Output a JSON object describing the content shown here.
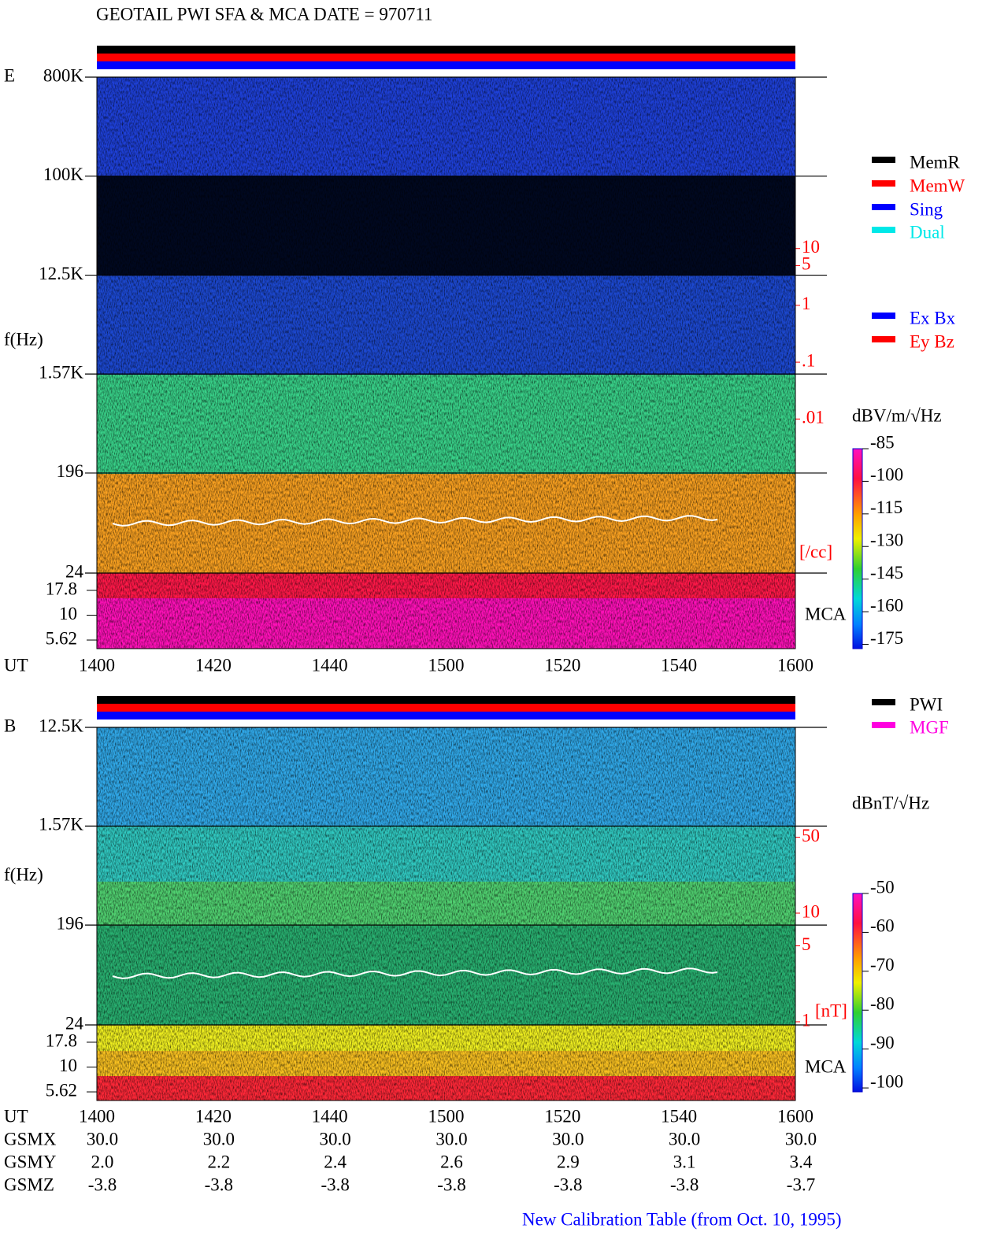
{
  "title": "GEOTAIL  PWI SFA & MCA   DATE = 970711",
  "chart_data": [
    {
      "type": "spectrogram",
      "panel": "E",
      "ylabel": "f(Hz)",
      "xlabel": "UT",
      "x": [
        "1400",
        "1420",
        "1440",
        "1500",
        "1520",
        "1540",
        "1600"
      ],
      "log_y": true,
      "ylim": [
        24,
        800000
      ],
      "yticks": [
        {
          "value": 800000,
          "label": "800K"
        },
        {
          "value": 100000,
          "label": "100K"
        },
        {
          "value": 12500,
          "label": "12.5K"
        },
        {
          "value": 1570,
          "label": "1.57K"
        },
        196,
        24
      ],
      "mca_label": "MCA",
      "mca_ylim": [
        4.6,
        26.6
      ],
      "mca_yticks": [
        17.8,
        10,
        5.62
      ],
      "y2label": "[/cc]",
      "y2lim": [
        0.005,
        20
      ],
      "y2ticks": [
        10,
        5,
        1,
        {
          "value": 0.1,
          "label": ".1"
        },
        {
          "value": 0.01,
          "label": ".01"
        }
      ],
      "colorbar": {
        "label": "dBV/m/√Hz",
        "lim": [
          -177,
          -85
        ],
        "ticks": [
          -85,
          -100,
          -115,
          -130,
          -145,
          -160,
          -175
        ]
      },
      "legend": [
        {
          "name": "MemR",
          "color": "#000000"
        },
        {
          "name": "MemW",
          "color": "#ff0000"
        },
        {
          "name": "Sing",
          "color": "#0000ff"
        },
        {
          "name": "Dual",
          "color": "#00e8e8"
        }
      ],
      "legend2": [
        {
          "name": "Ex Bx",
          "color": "#0000ff"
        },
        {
          "name": "Ey Bz",
          "color": "#ff0000"
        }
      ]
    },
    {
      "type": "spectrogram",
      "panel": "B",
      "ylabel": "f(Hz)",
      "xlabel": "UT",
      "x": [
        "1400",
        "1420",
        "1440",
        "1500",
        "1520",
        "1540",
        "1600"
      ],
      "log_y": true,
      "ylim": [
        24,
        12500
      ],
      "yticks": [
        {
          "value": 12500,
          "label": "12.5K"
        },
        {
          "value": 1570,
          "label": "1.57K"
        },
        196,
        24
      ],
      "mca_label": "MCA",
      "mca_ylim": [
        4.6,
        26.6
      ],
      "mca_yticks": [
        17.8,
        10,
        5.62
      ],
      "y2label": "[nT]",
      "y2lim": [
        0.935,
        62.7
      ],
      "y2ticks": [
        50,
        10,
        5,
        1
      ],
      "colorbar": {
        "label": "dBnT/√Hz",
        "lim": [
          -101,
          -50
        ],
        "ticks": [
          -50,
          -60,
          -70,
          -80,
          -90,
          -100
        ]
      },
      "legend": [
        {
          "name": "PWI",
          "color": "#000000"
        },
        {
          "name": "MGF",
          "color": "#ff00e0"
        }
      ]
    }
  ],
  "orbit": [
    {
      "label": "GSMX",
      "values": [
        "30.0",
        "30.0",
        "30.0",
        "30.0",
        "30.0",
        "30.0",
        "30.0"
      ]
    },
    {
      "label": "GSMY",
      "values": [
        "2.0",
        "2.2",
        "2.4",
        "2.6",
        "2.9",
        "3.1",
        "3.4"
      ]
    },
    {
      "label": "GSMZ",
      "values": [
        "-3.8",
        "-3.8",
        "-3.8",
        "-3.8",
        "-3.8",
        "-3.8",
        "-3.7"
      ]
    }
  ],
  "footer": "New Calibration Table (from Oct. 10, 1995)"
}
